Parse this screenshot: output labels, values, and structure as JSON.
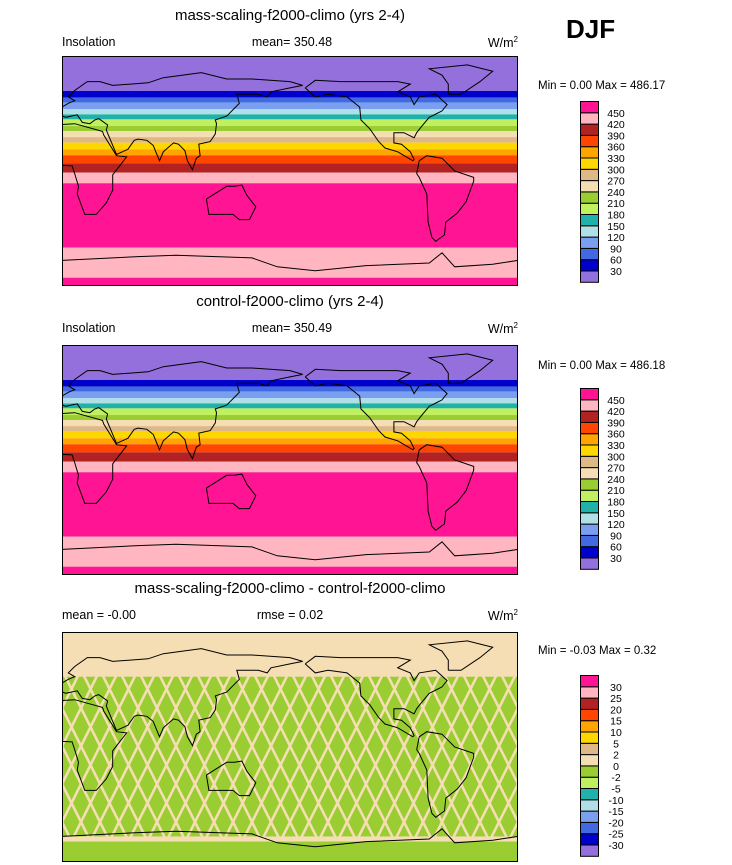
{
  "header": {
    "season": "DJF"
  },
  "colors": [
    "#9370db",
    "#0000cd",
    "#4169e1",
    "#7b9ff0",
    "#b0e0e6",
    "#20b2aa",
    "#c0f060",
    "#9acd32",
    "#f5deb3",
    "#deb887",
    "#ffd700",
    "#ffa500",
    "#ff4500",
    "#b22222",
    "#ffb6c1",
    "#ff1493"
  ],
  "chart_data": [
    {
      "type": "heatmap",
      "title": "mass-scaling-f2000-climo (yrs 2-4)",
      "left_label": "Insolation",
      "center_label": "mean= 350.48",
      "units": "W/m",
      "units_sup": "2",
      "minmax": "Min =   0.00 Max = 486.17",
      "colorbar_levels": [
        "30",
        "60",
        "90",
        "120",
        "150",
        "180",
        "210",
        "240",
        "270",
        "300",
        "330",
        "360",
        "390",
        "420",
        "450"
      ],
      "lon_range": [
        0,
        360
      ],
      "lat_range": [
        -90,
        90
      ],
      "bands": [
        {
          "lat_top": 90,
          "lat_bottom": 62.6,
          "color_index": 0
        },
        {
          "lat_top": 62.6,
          "lat_bottom": 57.4,
          "color_index": 1
        },
        {
          "lat_top": 57.4,
          "lat_bottom": 53.5,
          "color_index": 2
        },
        {
          "lat_top": 53.5,
          "lat_bottom": 48.3,
          "color_index": 3
        },
        {
          "lat_top": 48.3,
          "lat_bottom": 44.3,
          "color_index": 4
        },
        {
          "lat_top": 44.3,
          "lat_bottom": 40.4,
          "color_index": 5
        },
        {
          "lat_top": 40.4,
          "lat_bottom": 35.2,
          "color_index": 6
        },
        {
          "lat_top": 35.2,
          "lat_bottom": 31.3,
          "color_index": 7
        },
        {
          "lat_top": 31.3,
          "lat_bottom": 26.5,
          "color_index": 8
        },
        {
          "lat_top": 26.5,
          "lat_bottom": 22.2,
          "color_index": 9
        },
        {
          "lat_top": 22.2,
          "lat_bottom": 17,
          "color_index": 10
        },
        {
          "lat_top": 17,
          "lat_bottom": 12.3,
          "color_index": 11
        },
        {
          "lat_top": 12.3,
          "lat_bottom": 6,
          "color_index": 12
        },
        {
          "lat_top": 6,
          "lat_bottom": -1.3,
          "color_index": 13
        },
        {
          "lat_top": -1.3,
          "lat_bottom": -9.6,
          "color_index": 14
        },
        {
          "lat_top": -9.6,
          "lat_bottom": -60,
          "color_index": 15
        },
        {
          "lat_top": -60,
          "lat_bottom": -83.5,
          "color_index": 14
        },
        {
          "lat_top": -83.5,
          "lat_bottom": -90,
          "color_index": 15
        }
      ]
    },
    {
      "type": "heatmap",
      "title": "control-f2000-climo (yrs 2-4)",
      "left_label": "Insolation",
      "center_label": "mean= 350.49",
      "units": "W/m",
      "units_sup": "2",
      "minmax": "Min =   0.00 Max = 486.18",
      "colorbar_levels": [
        "30",
        "60",
        "90",
        "120",
        "150",
        "180",
        "210",
        "240",
        "270",
        "300",
        "330",
        "360",
        "390",
        "420",
        "450"
      ],
      "lon_range": [
        0,
        360
      ],
      "lat_range": [
        -90,
        90
      ],
      "bands": [
        {
          "lat_top": 90,
          "lat_bottom": 62.6,
          "color_index": 0
        },
        {
          "lat_top": 62.6,
          "lat_bottom": 57.4,
          "color_index": 1
        },
        {
          "lat_top": 57.4,
          "lat_bottom": 53.5,
          "color_index": 2
        },
        {
          "lat_top": 53.5,
          "lat_bottom": 48.3,
          "color_index": 3
        },
        {
          "lat_top": 48.3,
          "lat_bottom": 44.3,
          "color_index": 4
        },
        {
          "lat_top": 44.3,
          "lat_bottom": 40.4,
          "color_index": 5
        },
        {
          "lat_top": 40.4,
          "lat_bottom": 35.2,
          "color_index": 6
        },
        {
          "lat_top": 35.2,
          "lat_bottom": 31.3,
          "color_index": 7
        },
        {
          "lat_top": 31.3,
          "lat_bottom": 26.5,
          "color_index": 8
        },
        {
          "lat_top": 26.5,
          "lat_bottom": 22.2,
          "color_index": 9
        },
        {
          "lat_top": 22.2,
          "lat_bottom": 17,
          "color_index": 10
        },
        {
          "lat_top": 17,
          "lat_bottom": 12.3,
          "color_index": 11
        },
        {
          "lat_top": 12.3,
          "lat_bottom": 6,
          "color_index": 12
        },
        {
          "lat_top": 6,
          "lat_bottom": -1.3,
          "color_index": 13
        },
        {
          "lat_top": -1.3,
          "lat_bottom": -9.6,
          "color_index": 14
        },
        {
          "lat_top": -9.6,
          "lat_bottom": -60,
          "color_index": 15
        },
        {
          "lat_top": -60,
          "lat_bottom": -83.5,
          "color_index": 14
        },
        {
          "lat_top": -83.5,
          "lat_bottom": -90,
          "color_index": 15
        }
      ]
    },
    {
      "type": "heatmap",
      "title": "mass-scaling-f2000-climo - control-f2000-climo",
      "left_label": "mean =  -0.00",
      "center_label": "rmse =   0.02",
      "units": "W/m",
      "units_sup": "2",
      "minmax": "Min =  -0.03 Max =   0.32",
      "colorbar_levels": [
        "-30",
        "-25",
        "-20",
        "-15",
        "-10",
        "-5",
        "-2",
        "0",
        "2",
        "5",
        "10",
        "15",
        "20",
        "25",
        "30"
      ],
      "lon_range": [
        0,
        360
      ],
      "lat_range": [
        -90,
        90
      ],
      "background_color_index": 8,
      "bands": [
        {
          "lat_top": 55,
          "lat_bottom": -70,
          "color_index": 7,
          "pattern": "lattice"
        },
        {
          "lat_top": -74,
          "lat_bottom": -90,
          "color_index": 7
        }
      ]
    }
  ]
}
